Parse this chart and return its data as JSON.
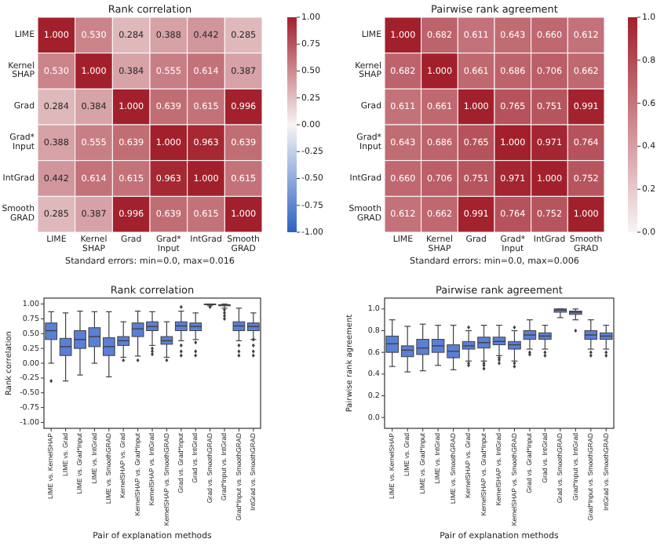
{
  "chart_data": [
    {
      "type": "heatmap",
      "title": "Rank correlation",
      "categories": [
        "LIME",
        "Kernel\nSHAP",
        "Grad",
        "Grad*\nInput",
        "IntGrad",
        "Smooth\nGRAD"
      ],
      "y_categories": [
        "LIME",
        "Kernel\nSHAP",
        "Grad",
        "Grad*\nInput",
        "IntGrad",
        "Smooth\nGRAD"
      ],
      "cells": [
        [
          1,
          0.53,
          0.284,
          0.388,
          0.442,
          0.285
        ],
        [
          0.53,
          1,
          0.384,
          0.555,
          0.614,
          0.387
        ],
        [
          0.284,
          0.384,
          1,
          0.639,
          0.615,
          0.996
        ],
        [
          0.388,
          0.555,
          0.639,
          1,
          0.963,
          0.639
        ],
        [
          0.442,
          0.614,
          0.615,
          0.963,
          1,
          0.615
        ],
        [
          0.285,
          0.387,
          0.996,
          0.639,
          0.615,
          1
        ]
      ],
      "cell_labels": [
        [
          "1.000",
          "0.530",
          "0.284",
          "0.388",
          "0.442",
          "0.285"
        ],
        [
          "0.530",
          "1.000",
          "0.384",
          "0.555",
          "0.614",
          "0.387"
        ],
        [
          "0.284",
          "0.384",
          "1.000",
          "0.639",
          "0.615",
          "0.996"
        ],
        [
          "0.388",
          "0.555",
          "0.639",
          "1.000",
          "0.963",
          "0.639"
        ],
        [
          "0.442",
          "0.614",
          "0.615",
          "0.963",
          "1.000",
          "0.615"
        ],
        [
          "0.285",
          "0.387",
          "0.996",
          "0.639",
          "0.615",
          "1.000"
        ]
      ],
      "clim": [
        -1,
        1
      ],
      "cticks": [
        {
          "value": -1,
          "label": "-1.00"
        },
        {
          "value": -0.75,
          "label": "-0.75"
        },
        {
          "value": -0.5,
          "label": "-0.50"
        },
        {
          "value": -0.25,
          "label": "-0.25"
        },
        {
          "value": 0,
          "label": "0.00"
        },
        {
          "value": 0.25,
          "label": "0.25"
        },
        {
          "value": 0.5,
          "label": "0.50"
        },
        {
          "value": 0.75,
          "label": "0.75"
        },
        {
          "value": 1,
          "label": "1.00"
        }
      ],
      "annotations": [
        "Standard errors: min=0.0, max=0.016"
      ]
    },
    {
      "type": "heatmap",
      "title": "Pairwise rank agreement",
      "categories": [
        "LIME",
        "Kernel\nSHAP",
        "Grad",
        "Grad*\nInput",
        "IntGrad",
        "Smooth\nGRAD"
      ],
      "y_categories": [
        "LIME",
        "Kernel\nSHAP",
        "Grad",
        "Grad*\nInput",
        "IntGrad",
        "Smooth\nGRAD"
      ],
      "cells": [
        [
          1,
          0.682,
          0.611,
          0.643,
          0.66,
          0.612
        ],
        [
          0.682,
          1,
          0.661,
          0.686,
          0.706,
          0.662
        ],
        [
          0.611,
          0.661,
          1,
          0.765,
          0.751,
          0.991
        ],
        [
          0.643,
          0.686,
          0.765,
          1,
          0.971,
          0.764
        ],
        [
          0.66,
          0.706,
          0.751,
          0.971,
          1,
          0.752
        ],
        [
          0.612,
          0.662,
          0.991,
          0.764,
          0.752,
          1
        ]
      ],
      "cell_labels": [
        [
          "1.000",
          "0.682",
          "0.611",
          "0.643",
          "0.660",
          "0.612"
        ],
        [
          "0.682",
          "1.000",
          "0.661",
          "0.686",
          "0.706",
          "0.662"
        ],
        [
          "0.611",
          "0.661",
          "1.000",
          "0.765",
          "0.751",
          "0.991"
        ],
        [
          "0.643",
          "0.686",
          "0.765",
          "1.000",
          "0.971",
          "0.764"
        ],
        [
          "0.660",
          "0.706",
          "0.751",
          "0.971",
          "1.000",
          "0.752"
        ],
        [
          "0.612",
          "0.662",
          "0.991",
          "0.764",
          "0.752",
          "1.000"
        ]
      ],
      "clim": [
        0,
        1
      ],
      "cticks": [
        {
          "value": 0,
          "label": "0.0"
        },
        {
          "value": 0.2,
          "label": "0.2"
        },
        {
          "value": 0.4,
          "label": "0.4"
        },
        {
          "value": 0.6,
          "label": "0.6"
        },
        {
          "value": 0.8,
          "label": "0.8"
        },
        {
          "value": 1,
          "label": "1.0"
        }
      ],
      "annotations": [
        "Standard errors: min=0.0, max=0.006"
      ]
    },
    {
      "type": "box",
      "title": "Rank correlation",
      "xlabel": "Pair of explanation methods",
      "ylabel": "Rank correlation",
      "categories": [
        "LIME vs. KernelSHAP",
        "LIME vs. Grad",
        "LIME vs. Grad*Input",
        "LIME vs. IntGrad",
        "LIME vs. SmoothGRAD",
        "KernelSHAP vs. Grad",
        "KernelSHAP vs. Grad*Input",
        "KernelSHAP vs. IntGrad",
        "KernelSHAP vs. SmoothGRAD",
        "Grad vs. Grad*Input",
        "Grad vs. IntGrad",
        "Grad vs. SmoothGRAD",
        "Grad*Input vs. IntGrad",
        "Grad*Input vs. SmoothGRAD",
        "IntGrad vs. SmoothGRAD"
      ],
      "ylim": [
        -1.1,
        1.1
      ],
      "yticks": [
        {
          "value": -1,
          "label": "-1.00"
        },
        {
          "value": -0.75,
          "label": "-0.75"
        },
        {
          "value": -0.5,
          "label": "-0.50"
        },
        {
          "value": -0.25,
          "label": "-0.25"
        },
        {
          "value": 0,
          "label": "0.00"
        },
        {
          "value": 0.25,
          "label": "0.25"
        },
        {
          "value": 0.5,
          "label": "0.50"
        },
        {
          "value": 0.75,
          "label": "0.75"
        },
        {
          "value": 1,
          "label": "1.00"
        }
      ],
      "series": [
        {
          "color": "#5a7fd6",
          "boxes": [
            {
              "low": 0.0,
              "q1": 0.4,
              "median": 0.55,
              "q3": 0.68,
              "high": 0.87,
              "outliers": [
                -0.3
              ]
            },
            {
              "low": -0.3,
              "q1": 0.13,
              "median": 0.28,
              "q3": 0.42,
              "high": 0.85
            },
            {
              "low": -0.2,
              "q1": 0.25,
              "median": 0.4,
              "q3": 0.55,
              "high": 0.88
            },
            {
              "low": 0.0,
              "q1": 0.28,
              "median": 0.45,
              "q3": 0.6,
              "high": 0.87
            },
            {
              "low": -0.23,
              "q1": 0.13,
              "median": 0.28,
              "q3": 0.43,
              "high": 0.87
            },
            {
              "low": 0.1,
              "q1": 0.3,
              "median": 0.38,
              "q3": 0.45,
              "high": 0.7,
              "outliers": [
                0.05
              ]
            },
            {
              "low": 0.12,
              "q1": 0.45,
              "median": 0.58,
              "q3": 0.68,
              "high": 0.88,
              "outliers": [
                0.05
              ]
            },
            {
              "low": 0.3,
              "q1": 0.55,
              "median": 0.62,
              "q3": 0.7,
              "high": 0.87,
              "outliers": [
                0.15,
                0.2,
                0.25
              ]
            },
            {
              "low": 0.1,
              "q1": 0.32,
              "median": 0.38,
              "q3": 0.45,
              "high": 0.7,
              "outliers": [
                0.05
              ]
            },
            {
              "low": 0.38,
              "q1": 0.55,
              "median": 0.63,
              "q3": 0.7,
              "high": 0.88,
              "outliers": [
                0.13,
                0.2,
                0.3,
                0.95
              ]
            },
            {
              "low": 0.4,
              "q1": 0.55,
              "median": 0.62,
              "q3": 0.68,
              "high": 0.85,
              "outliers": [
                0.13,
                0.2,
                0.35
              ]
            },
            {
              "low": 0.97,
              "q1": 0.99,
              "median": 0.995,
              "q3": 1.0,
              "high": 1.0,
              "outliers": [
                0.95
              ]
            },
            {
              "low": 0.93,
              "q1": 0.97,
              "median": 0.98,
              "q3": 0.99,
              "high": 1.0,
              "outliers": [
                0.75,
                0.8,
                0.85,
                0.9
              ]
            },
            {
              "low": 0.38,
              "q1": 0.55,
              "median": 0.63,
              "q3": 0.7,
              "high": 0.93,
              "outliers": [
                0.13,
                0.2,
                0.3
              ]
            },
            {
              "low": 0.4,
              "q1": 0.55,
              "median": 0.62,
              "q3": 0.68,
              "high": 0.85,
              "outliers": [
                0.13,
                0.2,
                0.3,
                0.4
              ]
            }
          ]
        }
      ]
    },
    {
      "type": "box",
      "title": "Pairwise rank agreement",
      "xlabel": "Pair of explanation methods",
      "ylabel": "Pairwise rank agreement",
      "categories": [
        "LIME vs. KernelSHAP",
        "LIME vs. Grad",
        "LIME vs. Grad*Input",
        "LIME vs. IntGrad",
        "LIME vs. SmoothGRAD",
        "KernelSHAP vs. Grad",
        "KernelSHAP vs. Grad*Input",
        "KernelSHAP vs. IntGrad",
        "KernelSHAP vs. SmoothGRAD",
        "Grad vs. Grad*Input",
        "Grad vs. IntGrad",
        "Grad vs. SmoothGRAD",
        "Grad*Input vs. IntGrad",
        "Grad*Input vs. SmoothGRAD",
        "IntGrad vs. SmoothGRAD"
      ],
      "ylim": [
        -0.1,
        1.1
      ],
      "yticks": [
        {
          "value": 0,
          "label": "0.0"
        },
        {
          "value": 0.2,
          "label": "0.2"
        },
        {
          "value": 0.4,
          "label": "0.4"
        },
        {
          "value": 0.6,
          "label": "0.6"
        },
        {
          "value": 0.8,
          "label": "0.8"
        },
        {
          "value": 1,
          "label": "1.0"
        }
      ],
      "series": [
        {
          "color": "#5a7fd6",
          "boxes": [
            {
              "low": 0.47,
              "q1": 0.6,
              "median": 0.68,
              "q3": 0.75,
              "high": 0.9
            },
            {
              "low": 0.42,
              "q1": 0.56,
              "median": 0.62,
              "q3": 0.66,
              "high": 0.84
            },
            {
              "low": 0.43,
              "q1": 0.58,
              "median": 0.64,
              "q3": 0.72,
              "high": 0.86
            },
            {
              "low": 0.48,
              "q1": 0.6,
              "median": 0.66,
              "q3": 0.72,
              "high": 0.85
            },
            {
              "low": 0.44,
              "q1": 0.55,
              "median": 0.61,
              "q3": 0.67,
              "high": 0.85
            },
            {
              "low": 0.52,
              "q1": 0.63,
              "median": 0.66,
              "q3": 0.7,
              "high": 0.8,
              "outliers": [
                0.48,
                0.5,
                0.83
              ]
            },
            {
              "low": 0.52,
              "q1": 0.64,
              "median": 0.69,
              "q3": 0.74,
              "high": 0.85,
              "outliers": [
                0.45,
                0.48,
                0.5
              ]
            },
            {
              "low": 0.57,
              "q1": 0.67,
              "median": 0.7,
              "q3": 0.74,
              "high": 0.85,
              "outliers": [
                0.5,
                0.53,
                0.55
              ]
            },
            {
              "low": 0.52,
              "q1": 0.63,
              "median": 0.67,
              "q3": 0.7,
              "high": 0.8,
              "outliers": [
                0.47,
                0.5,
                0.83
              ]
            },
            {
              "low": 0.63,
              "q1": 0.72,
              "median": 0.76,
              "q3": 0.8,
              "high": 0.9,
              "outliers": [
                0.58,
                0.6
              ]
            },
            {
              "low": 0.63,
              "q1": 0.72,
              "median": 0.75,
              "q3": 0.78,
              "high": 0.85,
              "outliers": [
                0.57,
                0.6
              ]
            },
            {
              "low": 0.92,
              "q1": 0.97,
              "median": 0.99,
              "q3": 1.0,
              "high": 1.0
            },
            {
              "low": 0.9,
              "q1": 0.95,
              "median": 0.97,
              "q3": 0.98,
              "high": 1.0,
              "outliers": [
                0.8
              ]
            },
            {
              "low": 0.63,
              "q1": 0.72,
              "median": 0.76,
              "q3": 0.8,
              "high": 0.9,
              "outliers": [
                0.57,
                0.6
              ]
            },
            {
              "low": 0.63,
              "q1": 0.72,
              "median": 0.75,
              "q3": 0.78,
              "high": 0.85,
              "outliers": [
                0.57,
                0.6
              ]
            }
          ]
        }
      ]
    }
  ]
}
